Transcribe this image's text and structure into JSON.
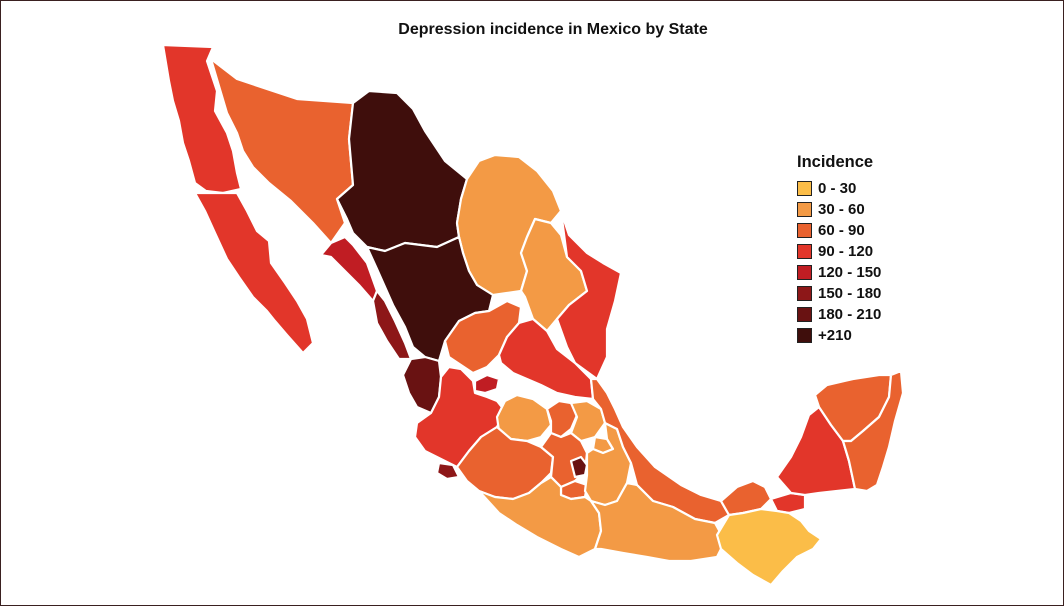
{
  "title": "Depression incidence in Mexico by State",
  "legend": {
    "title": "Incidence",
    "classes": [
      {
        "label": "0 - 30",
        "color": "#fbbd48"
      },
      {
        "label": "30 - 60",
        "color": "#f39a45"
      },
      {
        "label": "60 - 90",
        "color": "#e9622f"
      },
      {
        "label": "90 - 120",
        "color": "#e2362a"
      },
      {
        "label": "120 - 150",
        "color": "#c01d23"
      },
      {
        "label": "150 - 180",
        "color": "#8d1718"
      },
      {
        "label": "180 - 210",
        "color": "#691212"
      },
      {
        "label": "+210",
        "color": "#3f0e0c"
      }
    ]
  },
  "regions": [
    {
      "name": "baja-california",
      "class": 3
    },
    {
      "name": "baja-california-sur",
      "class": 3
    },
    {
      "name": "sonora",
      "class": 2
    },
    {
      "name": "chihuahua",
      "class": 7
    },
    {
      "name": "coahuila",
      "class": 1
    },
    {
      "name": "nuevo-leon",
      "class": 1
    },
    {
      "name": "tamaulipas",
      "class": 3
    },
    {
      "name": "sinaloa-north",
      "class": 4
    },
    {
      "name": "sinaloa-south",
      "class": 5
    },
    {
      "name": "durango",
      "class": 7
    },
    {
      "name": "nayarit",
      "class": 6
    },
    {
      "name": "zacatecas",
      "class": 2
    },
    {
      "name": "san-luis-potosi",
      "class": 3
    },
    {
      "name": "aguascalientes",
      "class": 4
    },
    {
      "name": "jalisco",
      "class": 3
    },
    {
      "name": "colima",
      "class": 5
    },
    {
      "name": "guanajuato",
      "class": 1
    },
    {
      "name": "queretaro",
      "class": 2
    },
    {
      "name": "hidalgo",
      "class": 1
    },
    {
      "name": "michoacan",
      "class": 2
    },
    {
      "name": "estado-de-mexico",
      "class": 2
    },
    {
      "name": "cdmx",
      "class": 6
    },
    {
      "name": "morelos",
      "class": 2
    },
    {
      "name": "tlaxcala",
      "class": 1
    },
    {
      "name": "puebla",
      "class": 1
    },
    {
      "name": "veracruz",
      "class": 2
    },
    {
      "name": "guerrero",
      "class": 1
    },
    {
      "name": "oaxaca",
      "class": 1
    },
    {
      "name": "tabasco",
      "class": 2
    },
    {
      "name": "tabasco-east",
      "class": 3
    },
    {
      "name": "chiapas",
      "class": 0
    },
    {
      "name": "campeche",
      "class": 3
    },
    {
      "name": "yucatan",
      "class": 2
    },
    {
      "name": "quintana-roo",
      "class": 2
    }
  ]
}
